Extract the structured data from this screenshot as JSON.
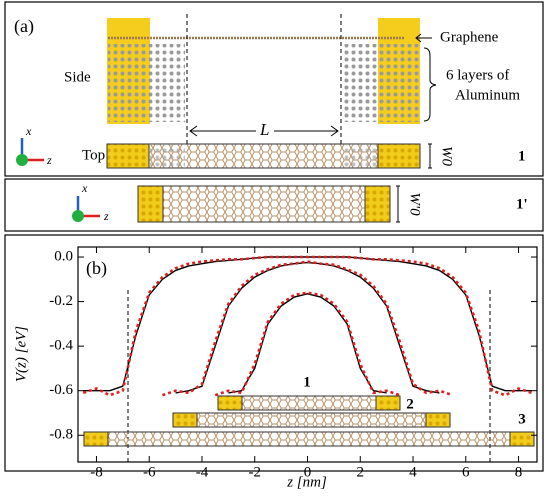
{
  "diagram": {
    "panel_label": "(a)",
    "graphene": "Graphene",
    "side": "Side",
    "layers_line1": "6 layers of",
    "layers_line2": "Aluminum",
    "length": "L",
    "top": "Top",
    "width": "W0",
    "width_prime": "W'0",
    "structure": "1",
    "structure_prime": "1'",
    "axis_x": "x",
    "axis_z": "z"
  },
  "chart_data": {
    "type": "line",
    "panel_label": "(b)",
    "x_label": "z [nm]",
    "y_label": "V(z) [eV]",
    "x": [
      -8.5,
      -8,
      -7.5,
      -7,
      -6.5,
      -6,
      -5.5,
      -5,
      -4.5,
      -4,
      -3.5,
      -3,
      -2.5,
      -2,
      -1.5,
      -1,
      -0.5,
      0,
      0.5,
      1,
      1.5,
      2,
      2.5,
      3,
      3.5,
      4,
      4.5,
      5,
      5.5,
      6,
      6.5,
      7,
      7.5,
      8,
      8.5
    ],
    "series": [
      {
        "color": "#000000",
        "dashed": false,
        "values": [
          -0.6,
          -0.6,
          -0.6,
          -0.58,
          -0.35,
          -0.17,
          -0.1,
          -0.06,
          -0.04,
          -0.03,
          -0.02,
          -0.015,
          -0.01,
          -0.005,
          0,
          0,
          0,
          0,
          0,
          0,
          0,
          -0.005,
          -0.01,
          -0.015,
          -0.02,
          -0.03,
          -0.04,
          -0.06,
          -0.1,
          -0.17,
          -0.35,
          -0.58,
          -0.6,
          -0.6,
          -0.6
        ]
      },
      {
        "color": "#000000",
        "dashed": false,
        "values": [
          null,
          null,
          null,
          null,
          null,
          null,
          null,
          -0.61,
          -0.6,
          -0.58,
          -0.4,
          -0.22,
          -0.14,
          -0.09,
          -0.06,
          -0.04,
          -0.03,
          -0.025,
          -0.03,
          -0.04,
          -0.06,
          -0.09,
          -0.14,
          -0.22,
          -0.4,
          -0.58,
          -0.6,
          -0.61,
          null,
          null,
          null,
          null,
          null,
          null,
          null
        ]
      },
      {
        "color": "#000000",
        "dashed": false,
        "values": [
          null,
          null,
          null,
          null,
          null,
          null,
          null,
          null,
          null,
          null,
          null,
          -0.61,
          -0.6,
          -0.5,
          -0.3,
          -0.22,
          -0.18,
          -0.165,
          -0.18,
          -0.22,
          -0.3,
          -0.5,
          -0.6,
          -0.61,
          null,
          null,
          null,
          null,
          null,
          null,
          null,
          null,
          null,
          null,
          null
        ]
      },
      {
        "color": "#e02020",
        "dashed": true,
        "values": [
          -0.61,
          -0.59,
          -0.62,
          -0.6,
          -0.33,
          -0.16,
          -0.09,
          -0.05,
          -0.03,
          -0.02,
          -0.015,
          -0.01,
          -0.01,
          -0.005,
          0,
          0,
          0,
          0,
          0,
          0,
          0,
          -0.005,
          -0.01,
          -0.01,
          -0.015,
          -0.02,
          -0.03,
          -0.05,
          -0.09,
          -0.16,
          -0.33,
          -0.6,
          -0.62,
          -0.59,
          -0.61
        ]
      },
      {
        "color": "#e02020",
        "dashed": true,
        "values": [
          null,
          null,
          null,
          null,
          null,
          null,
          -0.62,
          -0.6,
          -0.61,
          -0.57,
          -0.38,
          -0.21,
          -0.13,
          -0.08,
          -0.055,
          -0.035,
          -0.03,
          -0.02,
          -0.03,
          -0.035,
          -0.055,
          -0.08,
          -0.13,
          -0.21,
          -0.38,
          -0.57,
          -0.61,
          -0.6,
          -0.62,
          null,
          null,
          null,
          null,
          null,
          null
        ]
      },
      {
        "color": "#e02020",
        "dashed": true,
        "values": [
          null,
          null,
          null,
          null,
          null,
          null,
          null,
          null,
          null,
          null,
          -0.62,
          -0.6,
          -0.61,
          -0.48,
          -0.29,
          -0.21,
          -0.17,
          -0.16,
          -0.17,
          -0.21,
          -0.29,
          -0.48,
          -0.61,
          -0.6,
          -0.62,
          null,
          null,
          null,
          null,
          null,
          null,
          null,
          null,
          null,
          null
        ]
      }
    ],
    "xlim": [
      -8.7,
      8.7
    ],
    "ylim": [
      -0.92,
      0.045
    ],
    "xticks": [
      -8,
      -6,
      -4,
      -2,
      0,
      2,
      4,
      6,
      8
    ],
    "yticks": [
      {
        "value": 0,
        "label": "0.0"
      },
      -0.2,
      -0.4,
      -0.6,
      -0.8
    ],
    "annotations": [
      "1",
      "2",
      "3"
    ]
  }
}
